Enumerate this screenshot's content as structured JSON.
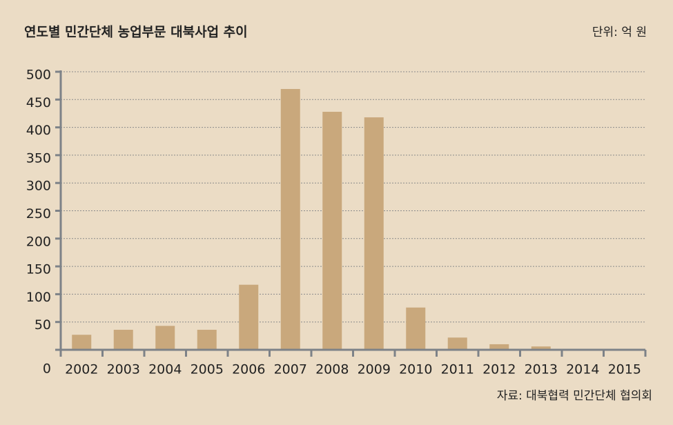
{
  "chart_data": {
    "type": "bar",
    "title": "연도별 민간단체 농업부문 대북사업 추이",
    "unit": "단위: 억 원",
    "source": "자료: 대북협력 민간단체 협의회",
    "categories": [
      "2002",
      "2003",
      "2004",
      "2005",
      "2006",
      "2007",
      "2008",
      "2009",
      "2010",
      "2011",
      "2012",
      "2013",
      "2014",
      "2015"
    ],
    "values": [
      27,
      36,
      43,
      36,
      117,
      469,
      428,
      418,
      76,
      22,
      10,
      6,
      0,
      0
    ],
    "color": "#c9a87c",
    "ylim": [
      0,
      500
    ],
    "yticks": [
      0,
      50,
      100,
      150,
      200,
      250,
      300,
      350,
      400,
      450,
      500
    ],
    "grid": true
  }
}
